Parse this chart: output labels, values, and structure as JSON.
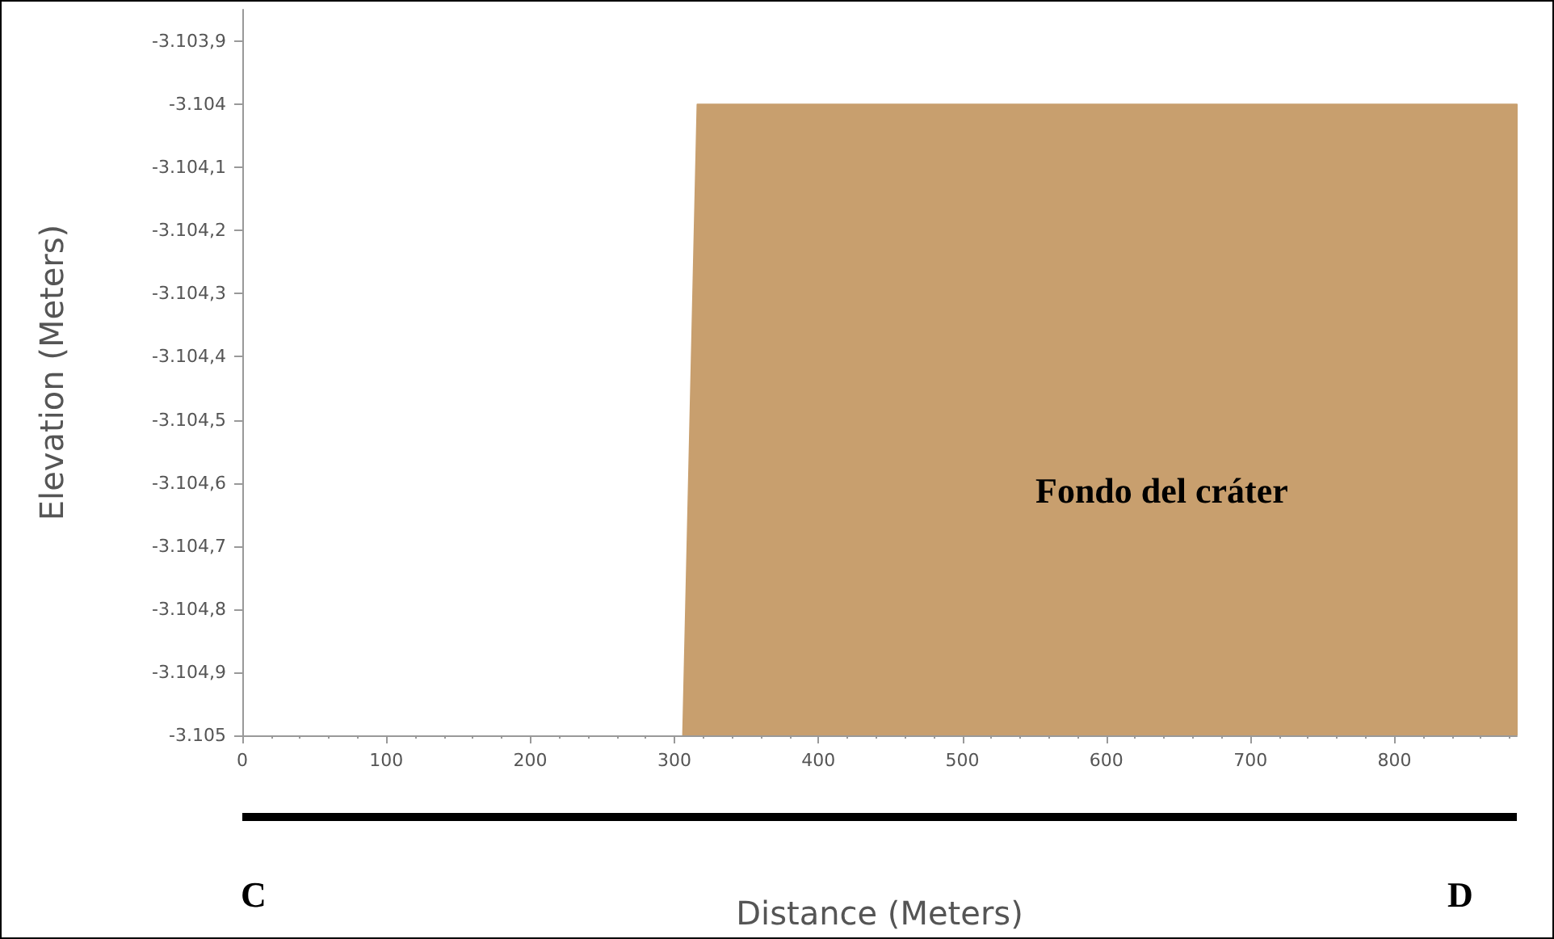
{
  "chart_data": {
    "type": "area",
    "xlabel": "Distance (Meters)",
    "ylabel": "Elevation (Meters)",
    "series": [
      {
        "color": "#c89f6e",
        "x": [
          306,
          316,
          885,
          885
        ],
        "values": [
          -3105,
          -3104,
          -3104,
          -3105
        ]
      }
    ],
    "xlim": [
      0,
      885
    ],
    "xticks": [
      0,
      100,
      200,
      300,
      400,
      500,
      600,
      700,
      800
    ],
    "ylim": [
      -3105,
      -3103.85
    ],
    "yticks": [
      {
        "value": -3105,
        "label": "-3.105"
      },
      {
        "value": -3104.9,
        "label": "-3.104,9"
      },
      {
        "value": -3104.8,
        "label": "-3.104,8"
      },
      {
        "value": -3104.7,
        "label": "-3.104,7"
      },
      {
        "value": -3104.6,
        "label": "-3.104,6"
      },
      {
        "value": -3104.5,
        "label": "-3.104,5"
      },
      {
        "value": -3104.4,
        "label": "-3.104,4"
      },
      {
        "value": -3104.3,
        "label": "-3.104,3"
      },
      {
        "value": -3104.2,
        "label": "-3.104,2"
      },
      {
        "value": -3104.1,
        "label": "-3.104,1"
      },
      {
        "value": -3104,
        "label": "-3.104"
      },
      {
        "value": -3103.9,
        "label": "-3.103,9"
      }
    ],
    "grid": false,
    "annotations": [
      "Fondo del cráter",
      "C",
      "D"
    ]
  }
}
